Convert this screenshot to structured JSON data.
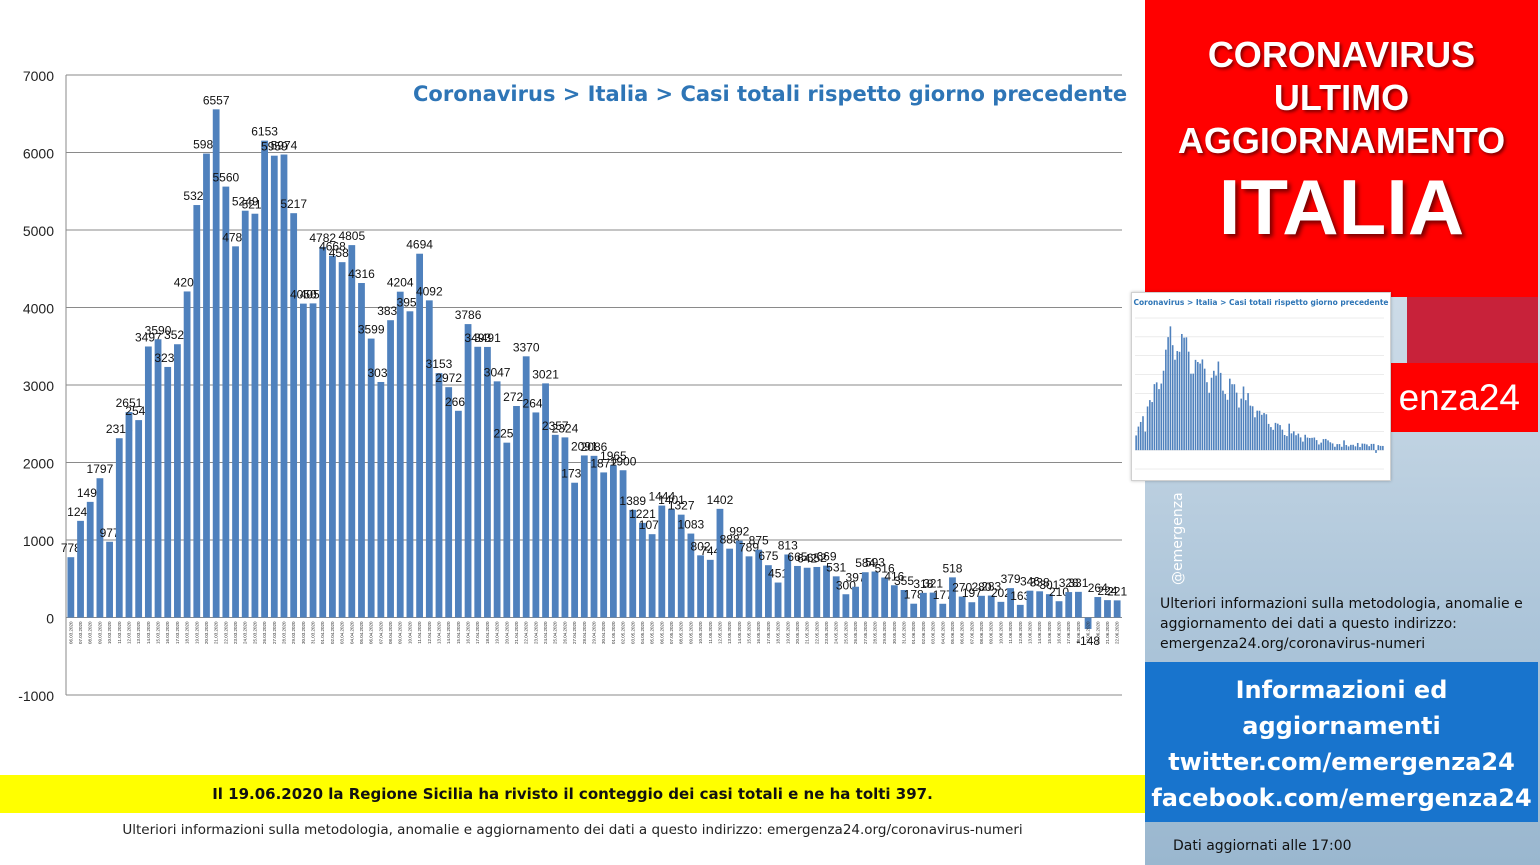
{
  "chart_data": {
    "type": "bar",
    "title": "Coronavirus > Italia > Casi totali rispetto giorno precedente",
    "ylim": [
      -1000,
      7000
    ],
    "yticks": [
      -1000,
      0,
      1000,
      2000,
      3000,
      4000,
      5000,
      6000,
      7000
    ],
    "grid": true,
    "bar_color": "#4f81bd",
    "categories": [
      "06.03.2020",
      "07.03.2020",
      "08.03.2020",
      "09.03.2020",
      "10.03.2020",
      "11.03.2020",
      "12.03.2020",
      "13.03.2020",
      "14.03.2020",
      "15.03.2020",
      "16.03.2020",
      "17.03.2020",
      "18.03.2020",
      "19.03.2020",
      "20.03.2020",
      "21.03.2020",
      "22.03.2020",
      "23.03.2020",
      "24.03.2020",
      "25.03.2020",
      "26.03.2020",
      "27.03.2020",
      "28.03.2020",
      "29.03.2020",
      "30.03.2020",
      "31.03.2020",
      "01.04.2020",
      "02.04.2020",
      "03.04.2020",
      "04.04.2020",
      "05.04.2020",
      "06.04.2020",
      "07.04.2020",
      "08.04.2020",
      "09.04.2020",
      "10.04.2020",
      "11.04.2020",
      "12.04.2020",
      "13.04.2020",
      "14.04.2020",
      "15.04.2020",
      "16.04.2020",
      "17.04.2020",
      "18.04.2020",
      "19.04.2020",
      "20.04.2020",
      "21.04.2020",
      "22.04.2020",
      "23.04.2020",
      "24.04.2020",
      "25.04.2020",
      "26.04.2020",
      "27.04.2020",
      "28.04.2020",
      "29.04.2020",
      "30.04.2020",
      "01.05.2020",
      "02.05.2020",
      "03.05.2020",
      "04.05.2020",
      "05.05.2020",
      "06.05.2020",
      "07.05.2020",
      "08.05.2020",
      "09.05.2020",
      "10.05.2020",
      "11.05.2020",
      "12.05.2020",
      "13.05.2020",
      "14.05.2020",
      "15.05.2020",
      "16.05.2020",
      "17.05.2020",
      "18.05.2020",
      "19.05.2020",
      "20.05.2020",
      "21.05.2020",
      "22.05.2020",
      "23.05.2020",
      "24.05.2020",
      "25.05.2020",
      "26.05.2020",
      "27.05.2020",
      "28.05.2020",
      "29.05.2020",
      "30.05.2020",
      "31.05.2020",
      "01.06.2020",
      "02.06.2020",
      "03.06.2020",
      "04.06.2020",
      "05.06.2020",
      "06.06.2020",
      "07.06.2020",
      "08.06.2020",
      "09.06.2020",
      "10.06.2020",
      "11.06.2020",
      "12.06.2020",
      "13.06.2020",
      "14.06.2020",
      "15.06.2020",
      "16.06.2020",
      "17.06.2020",
      "18.06.2020",
      "19.06.2020",
      "20.06.2020",
      "21.06.2020",
      "22.06.2020"
    ],
    "values": [
      778,
      1247,
      1492,
      1797,
      977,
      2313,
      2651,
      2547,
      3497,
      3590,
      3233,
      3526,
      4207,
      5322,
      5986,
      6557,
      5560,
      4789,
      5249,
      5210,
      6153,
      5959,
      5974,
      5217,
      4050,
      4053,
      4782,
      4668,
      4585,
      4805,
      4316,
      3599,
      3039,
      3836,
      4204,
      3951,
      4694,
      4092,
      3153,
      2972,
      2667,
      3786,
      3493,
      3491,
      3047,
      2256,
      2729,
      3370,
      2646,
      3021,
      2357,
      2324,
      1739,
      2091,
      2086,
      1872,
      1965,
      1900,
      1389,
      1221,
      1075,
      1444,
      1401,
      1327,
      1083,
      802,
      744,
      1402,
      888,
      992,
      789,
      875,
      675,
      451,
      813,
      665,
      642,
      652,
      669,
      531,
      300,
      397,
      584,
      593,
      516,
      416,
      355,
      178,
      318,
      321,
      177,
      518,
      270,
      197,
      280,
      283,
      202,
      379,
      163,
      346,
      338,
      301,
      210,
      328,
      331,
      -148,
      264,
      224,
      221
    ],
    "data_labels": [
      "778",
      "1247",
      "1492",
      "1797",
      "977",
      "2313",
      "2651",
      "2547",
      "3497",
      "3590",
      "3233",
      "3526",
      "4207",
      "5322",
      "5986",
      "6557",
      "5560",
      "4789",
      "5249",
      "5210",
      "6153",
      "5959",
      "5974",
      "5217",
      "4050",
      "4053",
      "4782",
      "4668",
      "4585",
      "4805",
      "4316",
      "3599",
      "3039",
      "3836",
      "4204",
      "3951",
      "4694",
      "4092",
      "3153",
      "2972",
      "2667",
      "3786",
      "3493",
      "3491",
      "3047",
      "2256",
      "2729",
      "3370",
      "2646",
      "3021",
      "2357",
      "2324",
      "1739",
      "2091",
      "2086",
      "1872",
      "1965",
      "1900",
      "1389",
      "1221",
      "1075",
      "1444",
      "1401",
      "1327",
      "1083",
      "802",
      "744",
      "1402",
      "888",
      "992",
      "789",
      "875",
      "675",
      "451",
      "813",
      "665",
      "642",
      "652",
      "669",
      "531",
      "300",
      "397",
      "584",
      "593",
      "516",
      "416",
      "355",
      "178",
      "318",
      "321",
      "177",
      "518",
      "270",
      "197",
      "280",
      "283",
      "202",
      "379",
      "163",
      "346",
      "338",
      "301",
      "210",
      "328",
      "331",
      "-148",
      "264",
      "224",
      "221"
    ]
  },
  "notice": "Il 19.06.2020 la Regione Sicilia ha rivisto il conteggio dei casi totali e ne ha tolti 397.",
  "footer_info": "Ulteriori informazioni sulla metodologia, anomalie e aggiornamento dei dati a questo indirizzo: emergenza24.org/coronavirus-numeri",
  "panel": {
    "headline_lines": [
      "CORONAVIRUS",
      "ULTIMO",
      "AGGIORNAMENTO"
    ],
    "headline_big": "ITALIA",
    "brand_fragment": "enza24",
    "handle": "@emergenza",
    "method_text": "Ulteriori informazioni sulla metodologia, anomalie e aggiornamento dei dati a questo indirizzo: emergenza24.org/coronavirus-numeri",
    "social_lines": [
      "Informazioni ed",
      "aggiornamenti",
      "twitter.com/emergenza24",
      "facebook.com/emergenza24"
    ],
    "update_time": "Dati aggiornati alle 17:00",
    "red": "#ff0000",
    "blue": "#1874cd"
  },
  "thumbnail": {
    "title": "Coronavirus > Italia > Casi totali rispetto giorno precedente"
  }
}
